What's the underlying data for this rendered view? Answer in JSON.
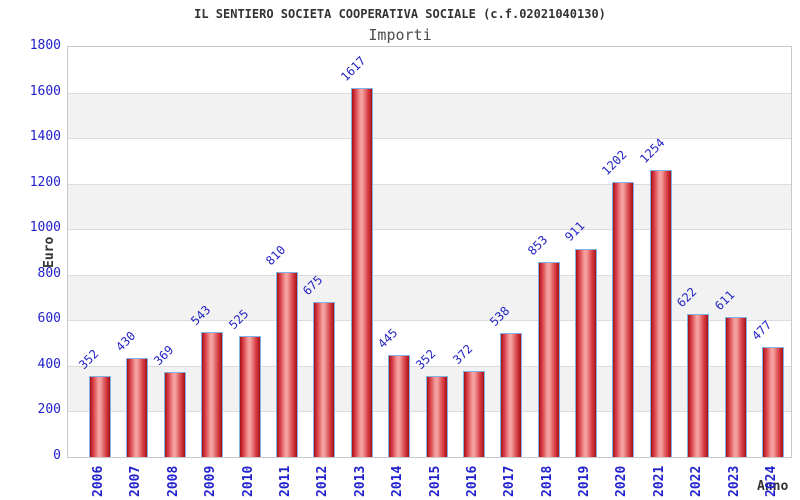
{
  "chart_data": {
    "type": "bar",
    "title": "IL SENTIERO SOCIETA COOPERATIVA SOCIALE (c.f.02021040130)",
    "subtitle": "Importi",
    "xlabel": "Anno",
    "ylabel": "Euro",
    "categories": [
      "2006",
      "2007",
      "2008",
      "2009",
      "2010",
      "2011",
      "2012",
      "2013",
      "2014",
      "2015",
      "2016",
      "2017",
      "2018",
      "2019",
      "2020",
      "2021",
      "2022",
      "2023",
      "2024"
    ],
    "values": [
      352,
      430,
      369,
      543,
      525,
      810,
      675,
      1617,
      445,
      352,
      372,
      538,
      853,
      911,
      1202,
      1254,
      622,
      611,
      477
    ],
    "ylim": [
      0,
      1800
    ],
    "ytick_step": 200,
    "grid": true,
    "legend_position": "none",
    "layout_hints": {
      "bands": "alternating horizontal gray stripes every 200 units",
      "x_labels_rotated": -90,
      "value_labels_rotated": -45
    },
    "colors": {
      "bar_edge": "#a91016",
      "bar_mid": "#d9444a",
      "bar_center": "#f5a0a0",
      "bar_border": "#7fb2e5",
      "axis_text": "#2222cc",
      "value_label": "#2424c4",
      "band": "#f2f2f2",
      "gridline": "#dcdcdc",
      "plot_border": "#c9c9c9",
      "title_text": "#333333",
      "subtitle_text": "#4d4d4d"
    }
  }
}
